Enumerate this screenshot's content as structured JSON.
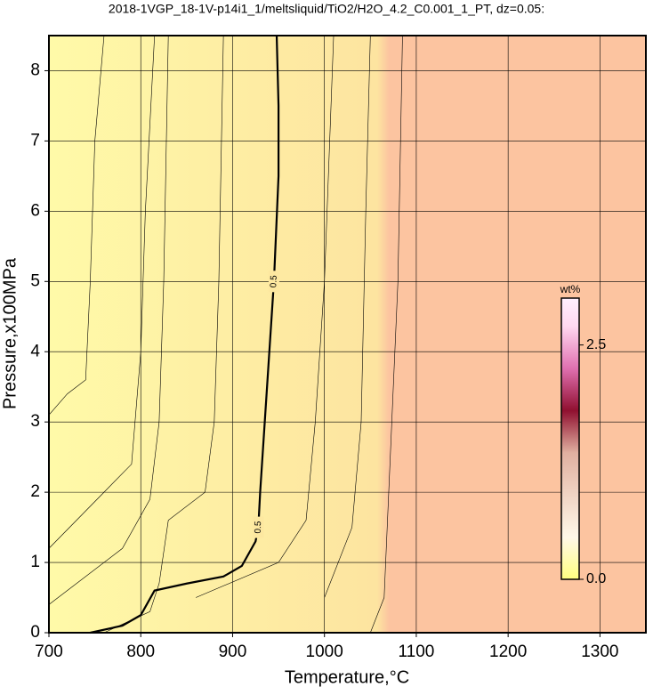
{
  "chart_data": {
    "type": "contour",
    "title": "2018-1VGP_18-1V-p14i1_1/meltsliquid/TiO2/H2O_4.2_C0.001_1_PT, dz=0.05:",
    "x_label": "Temperature,°C",
    "y_label": "Pressure,x100MPa",
    "xlim": [
      700,
      1350
    ],
    "ylim": [
      0,
      8.5
    ],
    "xticks": [
      700,
      800,
      900,
      1000,
      1100,
      1200,
      1300
    ],
    "yticks": [
      0,
      1,
      2,
      3,
      4,
      5,
      6,
      7,
      8
    ],
    "grid": true,
    "contours": [
      {
        "level": 0.5,
        "x": [
          745,
          780,
          800,
          815,
          850,
          890,
          910,
          925,
          928,
          930,
          935,
          940,
          945,
          950,
          950,
          948
        ],
        "y": [
          0,
          0.1,
          0.25,
          0.6,
          0.7,
          0.8,
          0.95,
          1.3,
          1.5,
          2.0,
          3.0,
          4.0,
          5.0,
          6.5,
          7.5,
          8.5
        ]
      }
    ],
    "thin_contours": [
      {
        "x": [
          700,
          720,
          740,
          745,
          750,
          760
        ],
        "y": [
          3.1,
          3.4,
          3.6,
          5,
          7,
          8.5
        ]
      },
      {
        "x": [
          700,
          760,
          790,
          800,
          805,
          815
        ],
        "y": [
          1.2,
          2.0,
          2.4,
          4,
          6,
          8.5
        ]
      },
      {
        "x": [
          700,
          780,
          810,
          820,
          825,
          830
        ],
        "y": [
          0.4,
          1.2,
          1.9,
          3,
          5,
          8.5
        ]
      },
      {
        "x": [
          760,
          810,
          820,
          830,
          870,
          880,
          885,
          890
        ],
        "y": [
          0,
          0.3,
          0.7,
          1.6,
          2.0,
          3,
          5,
          8.5
        ]
      },
      {
        "x": [
          860,
          950,
          980,
          990,
          1000,
          1010
        ],
        "y": [
          0.5,
          1.0,
          1.6,
          3,
          5,
          8.5
        ]
      },
      {
        "x": [
          1000,
          1030,
          1040,
          1045,
          1050
        ],
        "y": [
          0.5,
          1.5,
          3,
          6,
          8.5
        ]
      },
      {
        "x": [
          1050,
          1065,
          1070,
          1080,
          1085
        ],
        "y": [
          0,
          0.5,
          2,
          5,
          8.5
        ]
      }
    ],
    "colorbar": {
      "label": "wt%",
      "clim": [
        0,
        3.0
      ],
      "ticks": [
        {
          "value": 0,
          "label": "0.0"
        },
        2.5
      ]
    }
  }
}
